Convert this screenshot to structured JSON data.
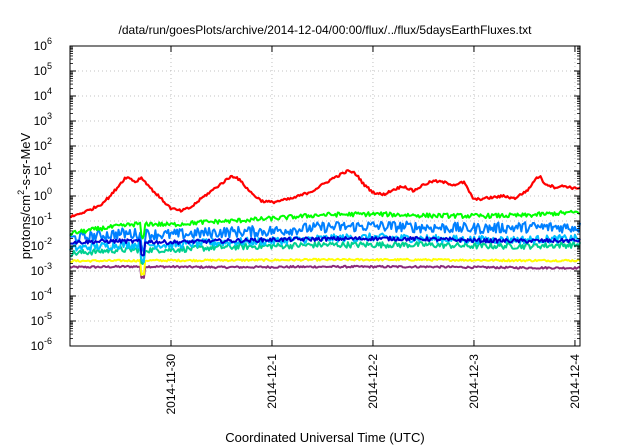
{
  "chart_data": {
    "type": "line",
    "title": "/data/run/goesPlots/archive/2014-12-04/00:00/flux/../flux/5daysEarthFluxes.txt",
    "xlabel": "Coordinated Universal Time (UTC)",
    "ylabel_main": "protons/cm",
    "ylabel_sup": "2",
    "ylabel_rest": "-s-sr-MeV",
    "yscale": "log",
    "ylim_exp": [
      -6,
      6
    ],
    "y_tick_exponents": [
      -6,
      -5,
      -4,
      -3,
      -2,
      -1,
      0,
      1,
      2,
      3,
      4,
      5,
      6
    ],
    "y_tick_base": "10",
    "xlim_days": [
      0,
      5.05
    ],
    "x_ticks": [
      {
        "label": "2014-11-30",
        "day": 1.0
      },
      {
        "label": "2014-12-1",
        "day": 2.0
      },
      {
        "label": "2014-12-2",
        "day": 3.0
      },
      {
        "label": "2014-12-3",
        "day": 4.0
      },
      {
        "label": "2014-12-4",
        "day": 5.0
      }
    ],
    "grid": true,
    "series": [
      {
        "color": "#ff0000",
        "jitter": 0.05,
        "points": [
          [
            0.0,
            -0.85
          ],
          [
            0.1,
            -0.7
          ],
          [
            0.2,
            -0.55
          ],
          [
            0.3,
            -0.35
          ],
          [
            0.4,
            0.0
          ],
          [
            0.5,
            0.5
          ],
          [
            0.55,
            0.75
          ],
          [
            0.6,
            0.7
          ],
          [
            0.65,
            0.55
          ],
          [
            0.7,
            0.75
          ],
          [
            0.75,
            0.55
          ],
          [
            0.8,
            0.3
          ],
          [
            0.9,
            -0.1
          ],
          [
            1.0,
            -0.5
          ],
          [
            1.1,
            -0.6
          ],
          [
            1.2,
            -0.45
          ],
          [
            1.3,
            -0.1
          ],
          [
            1.4,
            0.2
          ],
          [
            1.5,
            0.5
          ],
          [
            1.6,
            0.8
          ],
          [
            1.65,
            0.75
          ],
          [
            1.7,
            0.55
          ],
          [
            1.8,
            0.1
          ],
          [
            1.9,
            -0.2
          ],
          [
            2.0,
            -0.25
          ],
          [
            2.2,
            -0.1
          ],
          [
            2.4,
            0.2
          ],
          [
            2.5,
            0.45
          ],
          [
            2.6,
            0.7
          ],
          [
            2.7,
            0.9
          ],
          [
            2.75,
            1.0
          ],
          [
            2.8,
            0.95
          ],
          [
            2.85,
            0.8
          ],
          [
            2.9,
            0.5
          ],
          [
            3.0,
            0.15
          ],
          [
            3.1,
            0.05
          ],
          [
            3.2,
            0.25
          ],
          [
            3.3,
            0.4
          ],
          [
            3.4,
            0.2
          ],
          [
            3.5,
            0.45
          ],
          [
            3.6,
            0.6
          ],
          [
            3.7,
            0.55
          ],
          [
            3.8,
            0.45
          ],
          [
            3.9,
            0.55
          ],
          [
            4.0,
            -0.15
          ],
          [
            4.1,
            -0.1
          ],
          [
            4.2,
            -0.05
          ],
          [
            4.3,
            0.0
          ],
          [
            4.4,
            -0.1
          ],
          [
            4.5,
            0.15
          ],
          [
            4.55,
            0.3
          ],
          [
            4.6,
            0.65
          ],
          [
            4.65,
            0.8
          ],
          [
            4.7,
            0.5
          ],
          [
            4.8,
            0.35
          ],
          [
            4.9,
            0.4
          ],
          [
            5.0,
            0.3
          ],
          [
            5.05,
            0.35
          ]
        ]
      },
      {
        "color": "#00ff00",
        "jitter": 0.09,
        "points": [
          [
            0.0,
            -1.5
          ],
          [
            0.3,
            -1.3
          ],
          [
            0.7,
            -1.1
          ],
          [
            1.0,
            -1.15
          ],
          [
            1.3,
            -1.05
          ],
          [
            1.6,
            -1.0
          ],
          [
            2.0,
            -0.9
          ],
          [
            2.5,
            -0.75
          ],
          [
            3.0,
            -0.72
          ],
          [
            3.5,
            -0.78
          ],
          [
            4.0,
            -0.8
          ],
          [
            4.5,
            -0.78
          ],
          [
            4.8,
            -0.7
          ],
          [
            5.05,
            -0.65
          ]
        ]
      },
      {
        "color": "#0080ff",
        "jitter": 0.22,
        "points": [
          [
            0.0,
            -1.7
          ],
          [
            0.5,
            -1.5
          ],
          [
            1.0,
            -1.55
          ],
          [
            1.5,
            -1.45
          ],
          [
            2.0,
            -1.4
          ],
          [
            2.5,
            -1.25
          ],
          [
            3.0,
            -1.2
          ],
          [
            3.5,
            -1.25
          ],
          [
            4.0,
            -1.3
          ],
          [
            4.5,
            -1.25
          ],
          [
            5.05,
            -1.25
          ]
        ]
      },
      {
        "color": "#00c0ff",
        "jitter": 0.16,
        "points": [
          [
            0.0,
            -2.1
          ],
          [
            0.5,
            -1.95
          ],
          [
            1.0,
            -1.95
          ],
          [
            1.5,
            -1.85
          ],
          [
            2.0,
            -1.8
          ],
          [
            2.5,
            -1.7
          ],
          [
            3.0,
            -1.65
          ],
          [
            3.5,
            -1.7
          ],
          [
            4.0,
            -1.75
          ],
          [
            4.5,
            -1.75
          ],
          [
            5.05,
            -1.7
          ]
        ]
      },
      {
        "color": "#00d090",
        "jitter": 0.12,
        "points": [
          [
            0.0,
            -2.3
          ],
          [
            0.5,
            -2.15
          ],
          [
            1.0,
            -2.15
          ],
          [
            1.5,
            -2.05
          ],
          [
            2.0,
            -2.0
          ],
          [
            2.5,
            -1.95
          ],
          [
            3.0,
            -1.95
          ],
          [
            3.5,
            -1.95
          ],
          [
            4.0,
            -2.0
          ],
          [
            4.5,
            -2.0
          ],
          [
            5.05,
            -1.95
          ]
        ]
      },
      {
        "color": "#0000d0",
        "jitter": 0.08,
        "points": [
          [
            0.0,
            -1.85
          ],
          [
            0.5,
            -1.8
          ],
          [
            1.0,
            -1.85
          ],
          [
            1.5,
            -1.8
          ],
          [
            2.0,
            -1.75
          ],
          [
            2.5,
            -1.72
          ],
          [
            3.0,
            -1.7
          ],
          [
            3.5,
            -1.72
          ],
          [
            4.0,
            -1.78
          ],
          [
            4.5,
            -1.8
          ],
          [
            5.05,
            -1.78
          ]
        ]
      },
      {
        "color": "#ffff00",
        "jitter": 0.04,
        "points": [
          [
            0.0,
            -2.6
          ],
          [
            0.8,
            -2.58
          ],
          [
            1.5,
            -2.57
          ],
          [
            2.5,
            -2.55
          ],
          [
            3.5,
            -2.55
          ],
          [
            4.5,
            -2.58
          ],
          [
            5.05,
            -2.58
          ]
        ]
      },
      {
        "color": "#8b2a7a",
        "jitter": 0.04,
        "points": [
          [
            0.0,
            -2.85
          ],
          [
            0.7,
            -2.82
          ],
          [
            1.5,
            -2.85
          ],
          [
            2.5,
            -2.83
          ],
          [
            3.5,
            -2.83
          ],
          [
            4.5,
            -2.87
          ],
          [
            5.05,
            -2.88
          ]
        ]
      }
    ]
  }
}
